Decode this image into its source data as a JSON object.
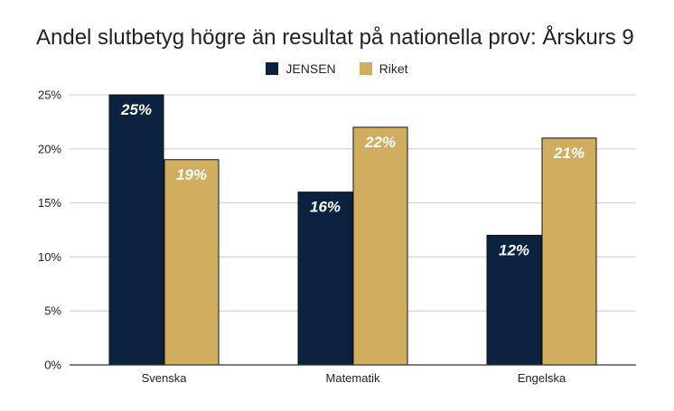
{
  "chart_data": {
    "type": "bar",
    "title": "Andel slutbetyg högre än resultat på nationella prov: Årskurs 9",
    "xlabel": "",
    "ylabel": "",
    "categories": [
      "Svenska",
      "Matematik",
      "Engelska"
    ],
    "series": [
      {
        "name": "JENSEN",
        "values": [
          25,
          16,
          12
        ],
        "labels": [
          "25%",
          "16%",
          "12%"
        ],
        "color": "#0b2341"
      },
      {
        "name": "Riket",
        "values": [
          19,
          22,
          21
        ],
        "labels": [
          "19%",
          "22%",
          "21%"
        ],
        "color": "#d1ae5f"
      }
    ],
    "y_ticks": [
      0,
      5,
      10,
      15,
      20,
      25
    ],
    "y_tick_labels": [
      "0%",
      "5%",
      "10%",
      "15%",
      "20%",
      "25%"
    ],
    "ylim": [
      0,
      25
    ],
    "grid": true,
    "legend_position": "top-center"
  }
}
